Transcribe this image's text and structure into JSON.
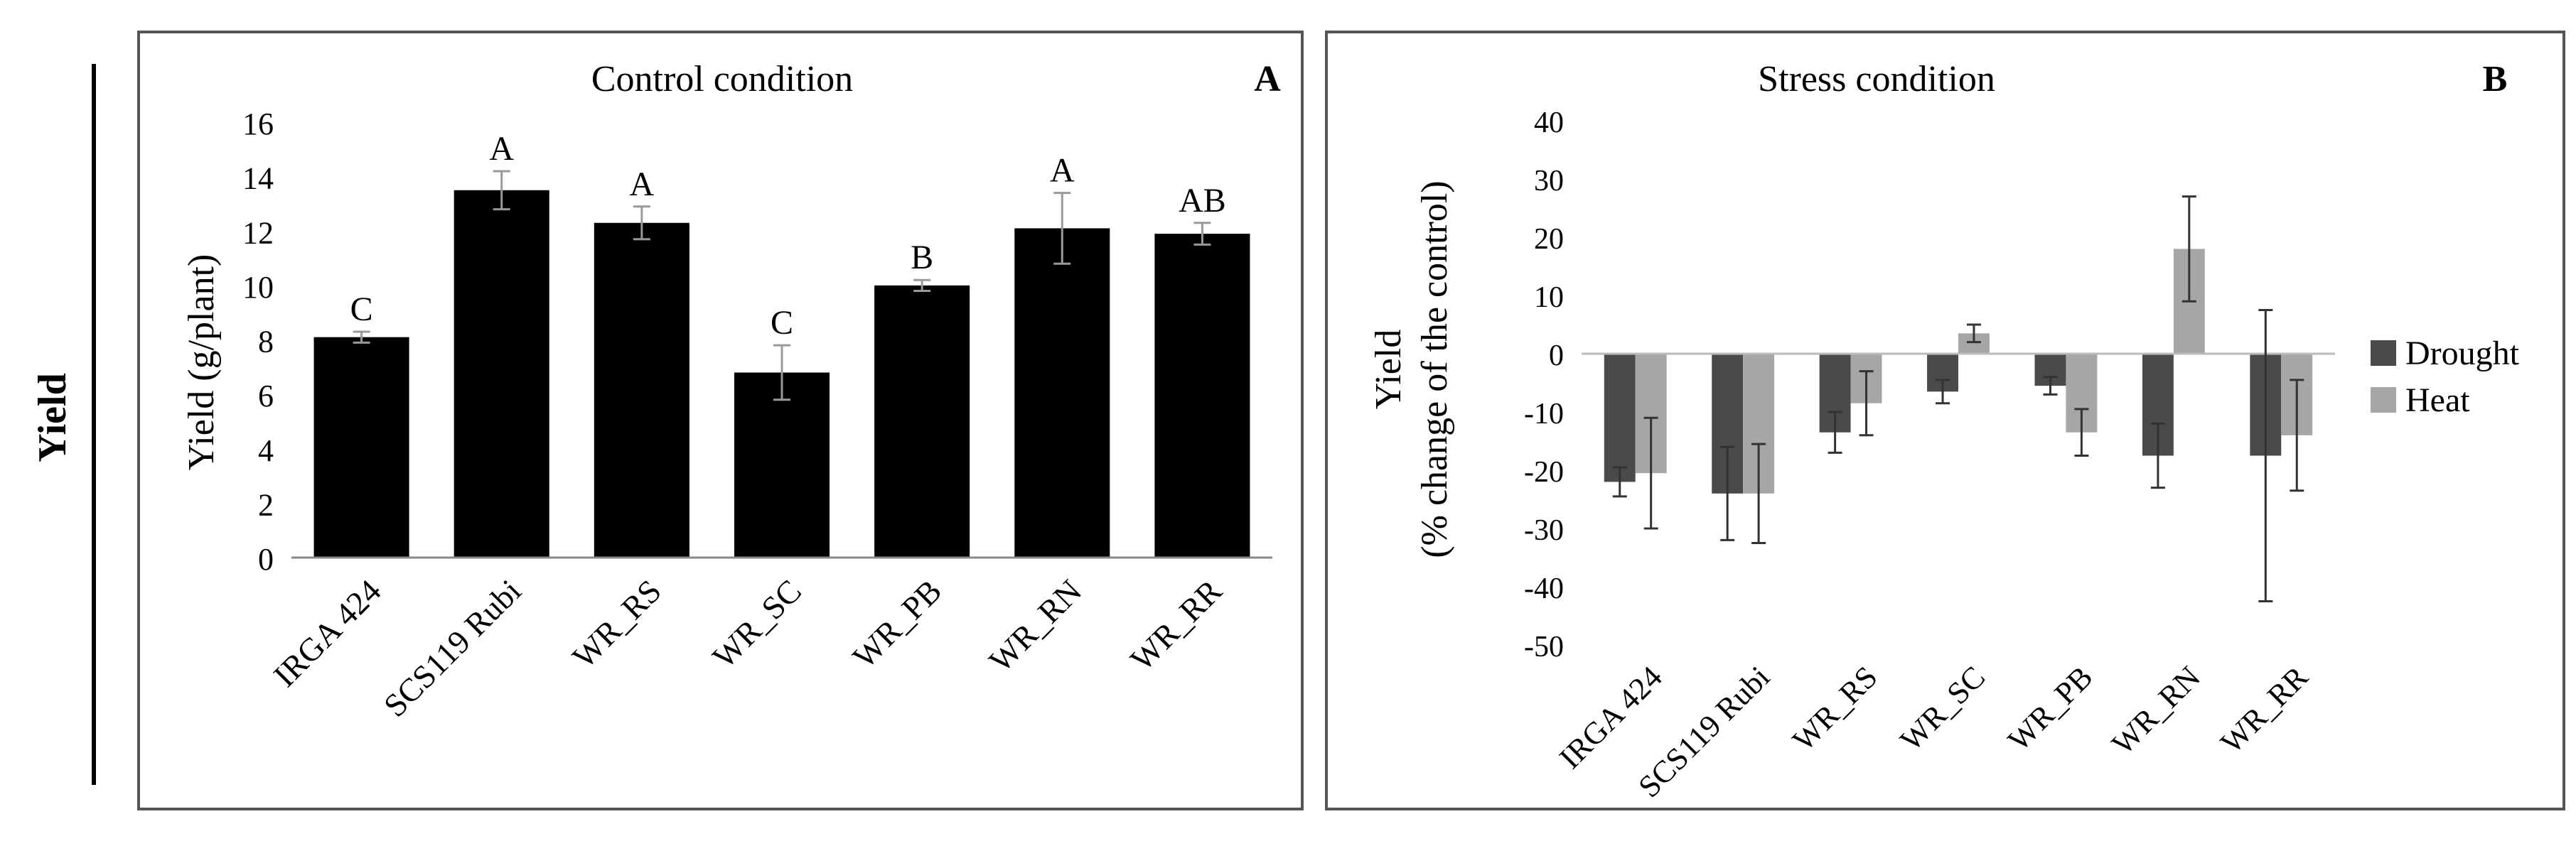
{
  "side_label": "Yield",
  "chart_data": [
    {
      "type": "bar",
      "panel_letter": "A",
      "title": "Control condition",
      "xlabel": "",
      "ylabel": "Yield (g/plant)",
      "ylim": [
        0,
        16
      ],
      "yticks": [
        0,
        2,
        4,
        6,
        8,
        10,
        12,
        14,
        16
      ],
      "categories": [
        "IRGA 424",
        "SCS119 Rubi",
        "WR_RS",
        "WR_SC",
        "WR_PB",
        "WR_RN",
        "WR_RR"
      ],
      "values": [
        8.1,
        13.5,
        12.3,
        6.8,
        10.0,
        12.1,
        11.9
      ],
      "errors": [
        0.2,
        0.7,
        0.6,
        1.0,
        0.2,
        1.3,
        0.4
      ],
      "letters": [
        "C",
        "A",
        "A",
        "C",
        "B",
        "A",
        "AB"
      ],
      "bar_color": "#000000",
      "grid": false
    },
    {
      "type": "bar",
      "panel_letter": "B",
      "title": "Stress condition",
      "xlabel": "",
      "ylabel": [
        "Yield",
        "(% change of the control)"
      ],
      "ylim": [
        -50,
        40
      ],
      "yticks": [
        -50,
        -40,
        -30,
        -20,
        -10,
        0,
        10,
        20,
        30,
        40
      ],
      "categories": [
        "IRGA 424",
        "SCS119 Rubi",
        "WR_RS",
        "WR_SC",
        "WR_PB",
        "WR_RN",
        "WR_RR"
      ],
      "series": [
        {
          "name": "Drought",
          "color": "#4a4a4a",
          "values": [
            -22,
            -24,
            -13.5,
            -6.5,
            -5.5,
            -17.5,
            -17.5
          ],
          "errors": [
            2.5,
            8,
            3.5,
            2,
            1.5,
            5.5,
            25
          ]
        },
        {
          "name": "Heat",
          "color": "#a6a6a6",
          "values": [
            -20.5,
            -24,
            -8.5,
            3.5,
            -13.5,
            18,
            -14
          ],
          "errors": [
            9.5,
            8.5,
            5.5,
            1.5,
            4,
            9,
            9.5
          ]
        }
      ],
      "legend_position": "right",
      "grid": false
    }
  ]
}
